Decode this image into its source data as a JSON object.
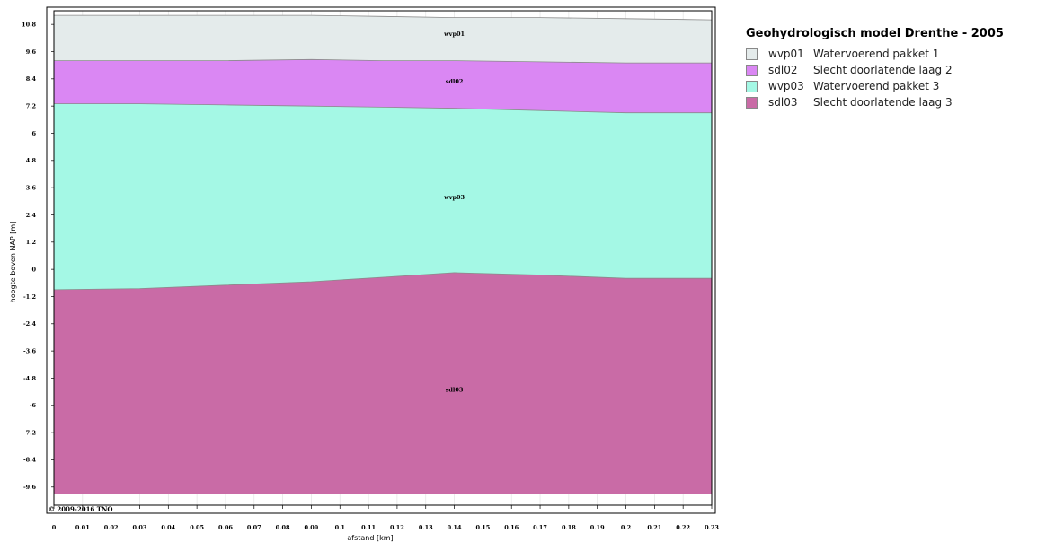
{
  "chart_data": {
    "type": "area",
    "title": "Geohydrologisch model Drenthe - 2005",
    "xlabel": "afstand [km]",
    "ylabel": "hoogte boven NAP [m]",
    "xlim": [
      0,
      0.23
    ],
    "ylim": [
      -10.4,
      11.4
    ],
    "x_ticks": [
      "0",
      "0.01",
      "0.02",
      "0.03",
      "0.04",
      "0.05",
      "0.06",
      "0.07",
      "0.08",
      "0.09",
      "0.1",
      "0.11",
      "0.12",
      "0.13",
      "0.14",
      "0.15",
      "0.16",
      "0.17",
      "0.18",
      "0.19",
      "0.2",
      "0.21",
      "0.22",
      "0.23"
    ],
    "y_ticks": [
      "10.8",
      "9.6",
      "8.4",
      "7.2",
      "6",
      "4.8",
      "3.6",
      "2.4",
      "1.2",
      "0",
      "-1.2",
      "-2.4",
      "-3.6",
      "-4.8",
      "-6",
      "-7.2",
      "-8.4",
      "-9.6"
    ],
    "grid": true,
    "legend_position": "right",
    "copyright": "© 2009-2016 TNO",
    "x": [
      0,
      0.03,
      0.06,
      0.09,
      0.115,
      0.14,
      0.17,
      0.2,
      0.23
    ],
    "boundaries": {
      "top": [
        11.2,
        11.2,
        11.2,
        11.2,
        11.15,
        11.1,
        11.1,
        11.05,
        11.0
      ],
      "wvp01_bot": [
        9.2,
        9.2,
        9.2,
        9.25,
        9.2,
        9.2,
        9.15,
        9.1,
        9.1
      ],
      "sdl02_bot": [
        7.3,
        7.3,
        7.25,
        7.2,
        7.15,
        7.1,
        7.0,
        6.9,
        6.9
      ],
      "wvp03_bot": [
        -0.9,
        -0.85,
        -0.7,
        -0.55,
        -0.35,
        -0.15,
        -0.25,
        -0.4,
        -0.4
      ],
      "bottom": [
        -9.9,
        -9.9,
        -9.9,
        -9.9,
        -9.9,
        -9.9,
        -9.9,
        -9.9,
        -9.9
      ]
    },
    "series": [
      {
        "name": "wvp01",
        "label": "wvp01",
        "description": "Watervoerend pakket 1",
        "color": "#e4ebeb",
        "upper": "top",
        "lower": "wvp01_bot",
        "label_x": 0.14,
        "label_y": 10.3
      },
      {
        "name": "sdl02",
        "label": "sdl02",
        "description": "Slecht doorlatende laag 2",
        "color": "#da87f3",
        "upper": "wvp01_bot",
        "lower": "sdl02_bot",
        "label_x": 0.14,
        "label_y": 8.2
      },
      {
        "name": "wvp03",
        "label": "wvp03",
        "description": "Watervoerend pakket 3",
        "color": "#a4f8e5",
        "upper": "sdl02_bot",
        "lower": "wvp03_bot",
        "label_x": 0.14,
        "label_y": 3.1
      },
      {
        "name": "sdl03",
        "label": "sdl03",
        "description": "Slecht doorlatende laag 3",
        "color": "#c96ba6",
        "upper": "wvp03_bot",
        "lower": "bottom",
        "label_x": 0.14,
        "label_y": -5.4
      }
    ]
  },
  "legend": {
    "title": "Geohydrologisch model Drenthe - 2005",
    "items": [
      {
        "code": "wvp01",
        "label": "Watervoerend pakket 1",
        "color": "#e4ebeb"
      },
      {
        "code": "sdl02",
        "label": "Slecht doorlatende laag 2",
        "color": "#da87f3"
      },
      {
        "code": "wvp03",
        "label": "Watervoerend pakket 3",
        "color": "#a4f8e5"
      },
      {
        "code": "sdl03",
        "label": "Slecht doorlatende laag 3",
        "color": "#c96ba6"
      }
    ]
  }
}
